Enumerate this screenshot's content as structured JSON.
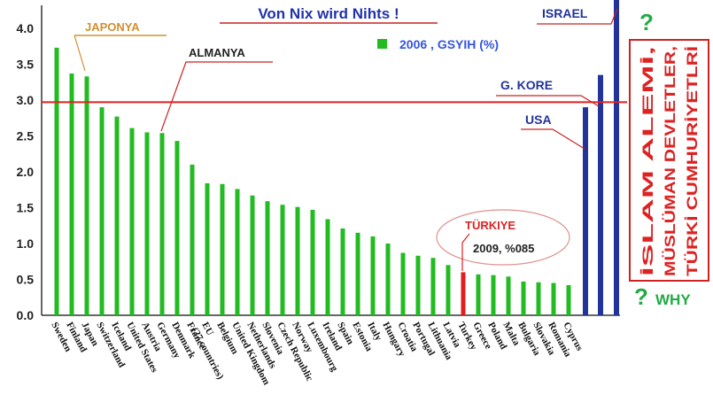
{
  "chart_data": {
    "type": "bar",
    "title": "Von Nix wird Nihts !",
    "legend": {
      "label": "2006 , GSYIH (%)",
      "color": "#22bb22",
      "placement": "top-center"
    },
    "ylim": [
      0,
      4.0
    ],
    "yticks": [
      "0.0",
      "0.5",
      "1.0",
      "1.5",
      "2.0",
      "2.5",
      "3.0",
      "3.5",
      "4.0"
    ],
    "grid": false,
    "reference_line": {
      "value": 2.97,
      "color": "#e02020"
    },
    "categories": [
      "Sweden",
      "Finland",
      "Japan",
      "Switzerland",
      "Iceland",
      "United States",
      "Austria",
      "Germany",
      "Denmark",
      "France",
      "EU (27 countries)",
      "Belgium",
      "United Kingdom",
      "Netherlands",
      "Slovenia",
      "Czech Republic",
      "Norway",
      "Luxembourg",
      "Ireland",
      "Spain",
      "Estonia",
      "Italy",
      "Hungary",
      "Croatia",
      "Portugal",
      "Lithuania",
      "Latvia",
      "Turkey",
      "Greece",
      "Poland",
      "Malta",
      "Bulgaria",
      "Slovakia",
      "Romania",
      "Cyprus"
    ],
    "values": [
      3.73,
      3.37,
      3.33,
      2.9,
      2.77,
      2.61,
      2.55,
      2.54,
      2.43,
      2.1,
      1.84,
      1.83,
      1.76,
      1.67,
      1.59,
      1.54,
      1.51,
      1.47,
      1.34,
      1.21,
      1.15,
      1.1,
      1.0,
      0.87,
      0.83,
      0.8,
      0.7,
      0.6,
      0.57,
      0.56,
      0.54,
      0.47,
      0.46,
      0.45,
      0.42
    ],
    "highlight": {
      "category": "Turkey",
      "color": "#e02020"
    },
    "bar_color": "#22bb22",
    "extra_series": {
      "color": "#223399",
      "bars": [
        {
          "name": "USA",
          "value": 2.9
        },
        {
          "name": "G. KORE",
          "value": 3.35
        },
        {
          "name": "ISRAEL",
          "value": 4.6
        }
      ]
    },
    "annotations": {
      "japonya": "JAPONYA",
      "almanya": "ALMANYA",
      "turkiye": "TÜRKIYE",
      "turkiye_note": "2009, %085",
      "israel": "ISRAEL",
      "gkore": "G. KORE",
      "usa": "USA"
    },
    "side_text": {
      "col1": "İSLAM ALEMİ,",
      "col2": "MÜSLÜMAN DEVLETLER,",
      "col3": "TÜRKİ CUMHURİYETLRİ",
      "question": "?",
      "why": "WHY"
    }
  }
}
